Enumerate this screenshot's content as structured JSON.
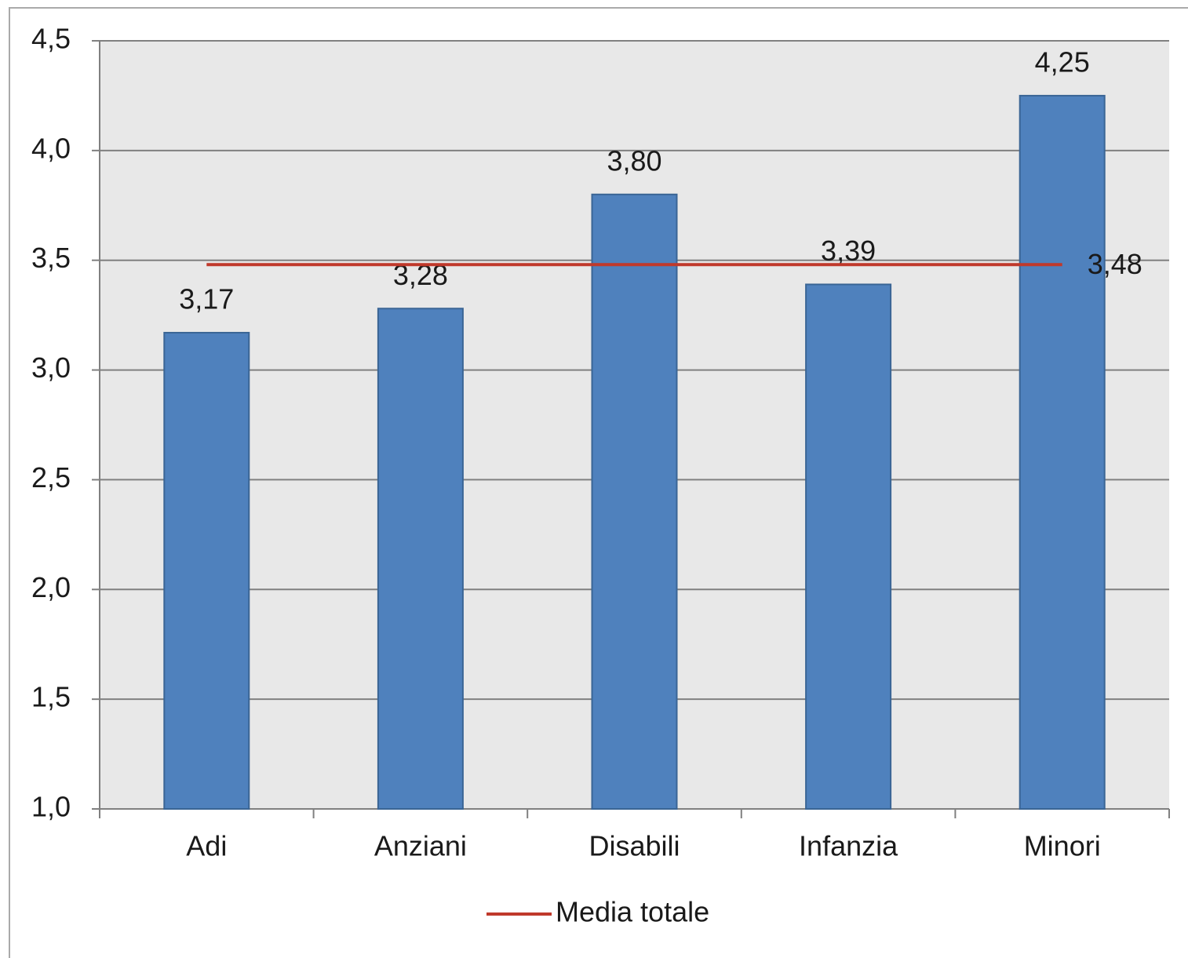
{
  "chart_data": {
    "type": "bar",
    "categories": [
      "Adi",
      "Anziani",
      "Disabili",
      "Infanzia",
      "Minori"
    ],
    "values": [
      3.17,
      3.28,
      3.8,
      3.39,
      4.25
    ],
    "value_labels": [
      "3,17",
      "3,28",
      "3,80",
      "3,39",
      "4,25"
    ],
    "color": "#4f81bd",
    "ylim": [
      1,
      4.5
    ],
    "yticks": [
      {
        "value": 1,
        "label": "1,0"
      },
      {
        "value": 1.5,
        "label": "1,5"
      },
      {
        "value": 2,
        "label": "2,0"
      },
      {
        "value": 2.5,
        "label": "2,5"
      },
      {
        "value": 3,
        "label": "3,0"
      },
      {
        "value": 3.5,
        "label": "3,5"
      },
      {
        "value": 4,
        "label": "4,0"
      },
      {
        "value": 4.5,
        "label": "4,5"
      }
    ],
    "grid": true,
    "reference_line": {
      "name": "Media totale",
      "value": 3.48,
      "value_label": "3,48",
      "color": "#c0392b"
    }
  }
}
